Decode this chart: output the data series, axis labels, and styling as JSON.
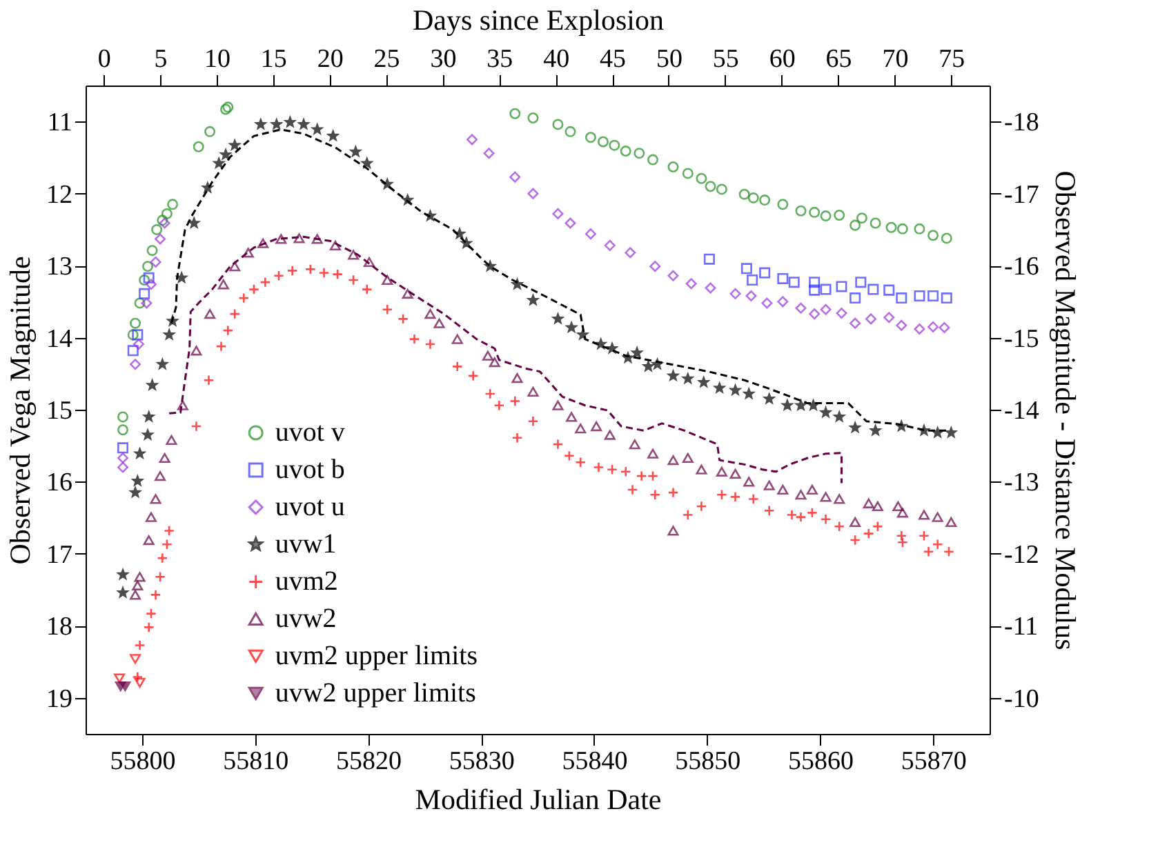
{
  "chart_data": {
    "type": "scatter",
    "xlabel": "Modified Julian Date",
    "ylabel": "Observed Vega Magnitude",
    "y2label": "Observed Magnitude - Distance Modulus",
    "x2label": "Days since Explosion",
    "xlim": [
      55795,
      55875
    ],
    "xticks": [
      55800,
      55810,
      55820,
      55830,
      55840,
      55850,
      55860,
      55870
    ],
    "ylim": [
      19.5,
      10.5
    ],
    "yticks": [
      11,
      12,
      13,
      14,
      15,
      16,
      17,
      18,
      19
    ],
    "y2lim": [
      -9.5,
      -18.5
    ],
    "y2ticks": [
      -18,
      -17,
      -16,
      -15,
      -14,
      -13,
      -12,
      -11,
      -10
    ],
    "x2lim": [
      -1.6,
      78.4
    ],
    "x2ticks": [
      0,
      5,
      10,
      15,
      20,
      25,
      30,
      35,
      40,
      45,
      50,
      55,
      60,
      65,
      70,
      75
    ],
    "grid": false,
    "legend": "bottom left",
    "series": [
      {
        "name": "uvot v",
        "color": "#1f8f1f",
        "marker": "circle",
        "x": [
          55798.3,
          55798.3,
          55799.2,
          55799.4,
          55799.8,
          55800.2,
          55800.5,
          55800.9,
          55801.3,
          55801.8,
          55802.2,
          55802.7,
          55805.0,
          55806.0,
          55807.4,
          55807.6,
          55833.0,
          55834.6,
          55836.8,
          55837.9,
          55839.7,
          55840.8,
          55841.8,
          55842.8,
          55844.0,
          55845.2,
          55847.0,
          55848.3,
          55849.5,
          55850.3,
          55851.3,
          55853.3,
          55854.1,
          55855.1,
          55856.7,
          55858.3,
          55859.5,
          55860.5,
          55861.7,
          55863.1,
          55863.7,
          55864.9,
          55866.3,
          55867.3,
          55868.8,
          55870.0,
          55871.2
        ],
        "values": [
          15.1,
          15.28,
          13.96,
          13.8,
          13.52,
          13.2,
          13.01,
          12.79,
          12.5,
          12.37,
          12.28,
          12.15,
          11.35,
          11.14,
          10.83,
          10.8,
          10.89,
          10.95,
          11.04,
          11.14,
          11.22,
          11.28,
          11.33,
          11.41,
          11.44,
          11.53,
          11.63,
          11.72,
          11.79,
          11.9,
          11.94,
          12.01,
          12.06,
          12.09,
          12.15,
          12.24,
          12.26,
          12.31,
          12.3,
          12.44,
          12.34,
          12.41,
          12.47,
          12.49,
          12.49,
          12.58,
          12.62
        ]
      },
      {
        "name": "uvot b",
        "color": "#3333ff",
        "marker": "square",
        "x": [
          55798.3,
          55799.2,
          55799.6,
          55800.2,
          55800.6,
          55850.2,
          55853.5,
          55854.0,
          55855.1,
          55856.7,
          55857.7,
          55859.5,
          55859.5,
          55860.5,
          55861.9,
          55863.1,
          55863.6,
          55864.7,
          55866.1,
          55867.2,
          55868.8,
          55870.0,
          55871.2
        ],
        "values": [
          15.53,
          14.18,
          13.96,
          13.39,
          13.17,
          12.91,
          13.04,
          13.2,
          13.1,
          13.18,
          13.23,
          13.23,
          13.34,
          13.33,
          13.29,
          13.45,
          13.23,
          13.33,
          13.34,
          13.45,
          13.42,
          13.42,
          13.45
        ]
      },
      {
        "name": "uvot u",
        "color": "#9933dd",
        "marker": "diamond",
        "x": [
          55798.3,
          55798.3,
          55799.4,
          55799.7,
          55800.4,
          55800.8,
          55801.2,
          55801.6,
          55802.0,
          55829.2,
          55830.7,
          55833.0,
          55834.6,
          55836.8,
          55837.9,
          55839.7,
          55841.4,
          55843.2,
          55845.4,
          55847.0,
          55848.6,
          55850.3,
          55852.5,
          55853.9,
          55855.3,
          55856.7,
          55858.3,
          55859.5,
          55860.5,
          55861.9,
          55863.1,
          55864.5,
          55866.1,
          55867.2,
          55868.8,
          55870.0,
          55871.0
        ],
        "values": [
          15.67,
          15.8,
          14.37,
          14.09,
          13.52,
          13.26,
          12.95,
          12.63,
          12.41,
          11.25,
          11.44,
          11.77,
          12.0,
          12.28,
          12.41,
          12.56,
          12.72,
          12.82,
          13.01,
          13.14,
          13.25,
          13.31,
          13.39,
          13.42,
          13.52,
          13.5,
          13.59,
          13.67,
          13.61,
          13.66,
          13.8,
          13.74,
          13.72,
          13.83,
          13.88,
          13.85,
          13.86
        ]
      },
      {
        "name": "uvw1",
        "color": "#000000",
        "marker": "star",
        "x": [
          55798.3,
          55798.3,
          55799.4,
          55799.6,
          55799.8,
          55800.5,
          55800.6,
          55800.9,
          55801.8,
          55802.4,
          55802.7,
          55803.5,
          55804.6,
          55805.8,
          55806.8,
          55807.4,
          55808.2,
          55810.5,
          55811.9,
          55813.1,
          55814.3,
          55815.5,
          55816.9,
          55818.9,
          55819.9,
          55821.7,
          55823.5,
          55825.5,
          55828.1,
          55828.7,
          55830.8,
          55833.2,
          55834.6,
          55836.8,
          55838.0,
          55839.0,
          55840.6,
          55841.6,
          55843.0,
          55843.8,
          55844.8,
          55845.6,
          55847.0,
          55848.3,
          55849.7,
          55851.1,
          55852.5,
          55853.7,
          55855.5,
          55857.1,
          55858.3,
          55859.4,
          55860.5,
          55861.7,
          55863.1,
          55864.9,
          55867.2,
          55869.2,
          55870.4,
          55871.6
        ],
        "values": [
          17.29,
          17.54,
          16.15,
          15.99,
          15.61,
          15.35,
          15.1,
          14.66,
          14.37,
          13.96,
          13.77,
          13.17,
          12.41,
          11.92,
          11.58,
          11.46,
          11.33,
          11.04,
          11.04,
          11.01,
          11.04,
          11.11,
          11.2,
          11.42,
          11.58,
          11.87,
          12.09,
          12.31,
          12.56,
          12.69,
          13.01,
          13.26,
          13.48,
          13.74,
          13.86,
          13.96,
          14.09,
          14.15,
          14.28,
          14.21,
          14.4,
          14.37,
          14.53,
          14.57,
          14.62,
          14.7,
          14.73,
          14.78,
          14.85,
          14.94,
          14.94,
          14.94,
          15.04,
          15.1,
          15.25,
          15.29,
          15.23,
          15.29,
          15.32,
          15.32
        ]
      },
      {
        "name": "uvm2",
        "color": "#ff0000",
        "marker": "cross",
        "x": [
          55799.6,
          55799.8,
          55800.6,
          55800.8,
          55801.2,
          55801.6,
          55801.8,
          55802.2,
          55802.4,
          55804.8,
          55805.9,
          55807.0,
          55807.6,
          55808.2,
          55809.0,
          55809.9,
          55810.9,
          55812.1,
          55813.3,
          55814.9,
          55816.1,
          55817.3,
          55818.7,
          55819.9,
          55821.7,
          55823.1,
          55824.1,
          55825.5,
          55827.9,
          55829.3,
          55830.8,
          55831.6,
          55833.0,
          55833.2,
          55834.6,
          55836.8,
          55837.8,
          55838.8,
          55840.4,
          55841.6,
          55842.8,
          55843.4,
          55844.2,
          55845.2,
          55845.4,
          55847.0,
          55848.3,
          55849.5,
          55851.3,
          55852.5,
          55854.1,
          55855.5,
          55857.5,
          55858.3,
          55859.3,
          55860.5,
          55861.7,
          55863.1,
          55864.3,
          55865.1,
          55867.2,
          55867.3,
          55869.2,
          55869.6,
          55870.4,
          55871.4
        ],
        "values": [
          18.71,
          18.27,
          18.02,
          17.83,
          17.57,
          17.32,
          17.06,
          16.87,
          16.68,
          15.23,
          14.59,
          14.12,
          13.9,
          13.67,
          13.45,
          13.33,
          13.23,
          13.14,
          13.07,
          13.05,
          13.1,
          13.12,
          13.2,
          13.33,
          13.61,
          13.74,
          14.02,
          14.09,
          14.4,
          14.53,
          14.78,
          14.94,
          14.88,
          15.39,
          15.16,
          15.48,
          15.64,
          15.73,
          15.8,
          15.83,
          15.86,
          16.11,
          15.92,
          15.92,
          16.18,
          16.15,
          16.46,
          16.34,
          16.18,
          16.21,
          16.24,
          16.4,
          16.46,
          16.49,
          16.43,
          16.52,
          16.62,
          16.81,
          16.72,
          16.62,
          16.75,
          16.84,
          16.75,
          16.97,
          16.87,
          16.97
        ]
      },
      {
        "name": "uvw2",
        "color": "#660044",
        "marker": "triangle",
        "x": [
          55799.4,
          55799.6,
          55799.8,
          55800.6,
          55800.8,
          55801.2,
          55801.6,
          55802.0,
          55802.6,
          55803.6,
          55804.8,
          55806.0,
          55807.2,
          55808.2,
          55809.4,
          55810.7,
          55812.3,
          55813.9,
          55815.5,
          55817.1,
          55818.7,
          55820.1,
          55821.7,
          55823.5,
          55825.5,
          55826.3,
          55827.9,
          55830.6,
          55831.2,
          55833.2,
          55834.6,
          55836.8,
          55838.0,
          55838.8,
          55840.2,
          55841.4,
          55843.6,
          55845.2,
          55847.0,
          55847.0,
          55848.3,
          55849.5,
          55851.3,
          55852.5,
          55853.7,
          55855.5,
          55856.7,
          55858.3,
          55859.3,
          55860.5,
          55861.7,
          55863.1,
          55864.3,
          55865.1,
          55866.9,
          55867.3,
          55869.2,
          55870.4,
          55871.6
        ],
        "values": [
          17.57,
          17.44,
          17.32,
          16.81,
          16.49,
          16.24,
          15.92,
          15.67,
          15.42,
          14.94,
          14.18,
          13.67,
          13.26,
          13.01,
          12.82,
          12.69,
          12.63,
          12.62,
          12.63,
          12.72,
          12.85,
          12.95,
          13.2,
          13.39,
          13.67,
          13.8,
          14.02,
          14.25,
          14.34,
          14.56,
          14.75,
          14.94,
          15.1,
          15.26,
          15.23,
          15.35,
          15.48,
          15.61,
          15.7,
          16.68,
          15.67,
          15.83,
          15.86,
          15.89,
          16.0,
          16.05,
          16.11,
          16.18,
          16.11,
          16.21,
          16.24,
          16.56,
          16.3,
          16.34,
          16.34,
          16.43,
          16.46,
          16.49,
          16.56
        ]
      },
      {
        "name": "uvm2 upper limits",
        "color": "#ff0000",
        "marker": "triangle-down",
        "x": [
          55798.0,
          55799.4,
          55799.8
        ],
        "values": [
          18.73,
          18.46,
          18.79
        ]
      },
      {
        "name": "uvw2 upper limits",
        "color": "#660044",
        "marker": "triangle-down-filled",
        "x": [
          55798.1,
          55798.5
        ],
        "values": [
          18.84,
          18.84
        ]
      },
      {
        "type": "line",
        "line_style": "dashed",
        "color": "#000000",
        "x": [
          55802.6,
          55803.0,
          55803.1,
          55803.8,
          55804.4,
          55806.2,
          55807.8,
          55809.9,
          55812.3,
          55814.3,
          55817.1,
          55819.9,
          55822.3,
          55824.7,
          55827.5,
          55829.9,
          55830.8,
          55832.8,
          55835.6,
          55838.8,
          55839.2,
          55842.8,
          55846.8,
          55850.1,
          55853.3,
          55855.7,
          55858.9,
          55862.5,
          55864.1,
          55866.9,
          55869.4,
          55871.4
        ],
        "values": [
          13.8,
          13.58,
          13.17,
          12.5,
          12.31,
          11.84,
          11.49,
          11.2,
          11.11,
          11.17,
          11.36,
          11.65,
          11.96,
          12.25,
          12.5,
          12.88,
          13.01,
          13.2,
          13.42,
          13.68,
          14.02,
          14.25,
          14.37,
          14.47,
          14.59,
          14.72,
          14.91,
          14.91,
          15.16,
          15.2,
          15.29,
          15.29
        ]
      },
      {
        "type": "line",
        "line_style": "dashed",
        "color": "#660044",
        "x": [
          55802.4,
          55803.4,
          55803.8,
          55804.2,
          55804.3,
          55805.0,
          55806.2,
          55807.8,
          55809.9,
          55811.9,
          55814.3,
          55816.7,
          55819.1,
          55821.5,
          55823.9,
          55826.7,
          55829.6,
          55831.2,
          55831.6,
          55834.0,
          55835.2,
          55837.2,
          55839.2,
          55841.2,
          55842.4,
          55844.4,
          55846.0,
          55848.0,
          55850.9,
          55851.1,
          55853.3,
          55854.9,
          55856.1,
          55857.3,
          55858.9,
          55860.5,
          55861.9,
          55861.9
        ],
        "values": [
          15.05,
          15.04,
          14.59,
          14.15,
          13.64,
          13.52,
          13.33,
          13.01,
          12.75,
          12.63,
          12.6,
          12.66,
          12.85,
          13.14,
          13.39,
          13.67,
          14.02,
          14.15,
          14.31,
          14.43,
          14.47,
          14.82,
          14.94,
          15.01,
          15.23,
          15.29,
          15.19,
          15.29,
          15.48,
          15.7,
          15.76,
          15.83,
          15.86,
          15.76,
          15.67,
          15.61,
          15.6,
          16.02
        ]
      }
    ]
  }
}
